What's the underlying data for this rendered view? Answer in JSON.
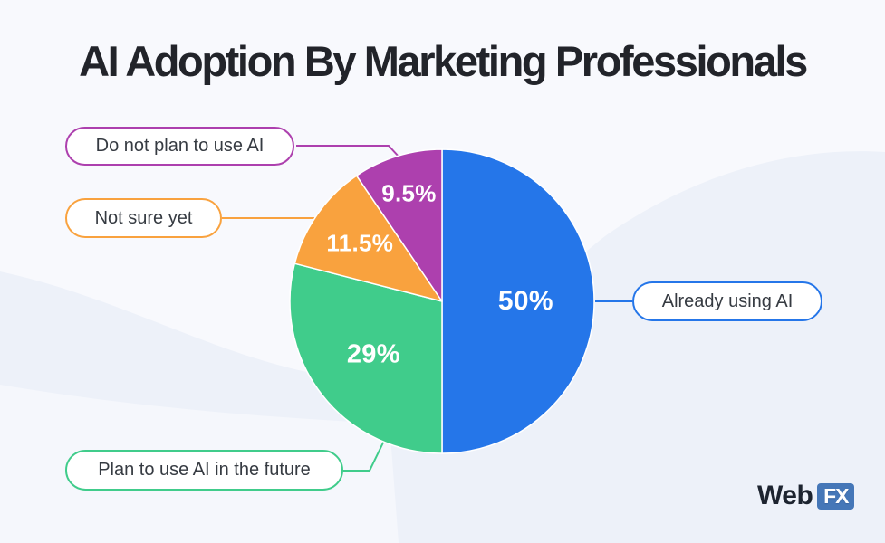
{
  "title": "AI Adoption By Marketing Professionals",
  "colors": {
    "background": "#f8f9fd",
    "wave_tint": "#edf1f9",
    "title_text": "#22242a",
    "pill_text": "#363b42",
    "pill_background": "#ffffff",
    "percent_text": "#ffffff"
  },
  "chart_data": {
    "type": "pie",
    "title": "AI Adoption By Marketing Professionals",
    "start_angle_deg": 0,
    "direction": "clockwise",
    "legend_position": "callout-pill-labels",
    "segments": [
      {
        "label": "Already using AI",
        "value": 50,
        "pct_label": "50%",
        "color": "#2576e9"
      },
      {
        "label": "Plan to use AI in the future",
        "value": 29,
        "pct_label": "29%",
        "color": "#40cc8b"
      },
      {
        "label": "Not sure yet",
        "value": 11.5,
        "pct_label": "11.5%",
        "color": "#f9a23e"
      },
      {
        "label": "Do not plan to use AI",
        "value": 9.5,
        "pct_label": "9.5%",
        "color": "#ad40ae"
      }
    ]
  },
  "brand": {
    "prefix": "Web",
    "suffix": "FX",
    "box_color": "#4577b8"
  }
}
